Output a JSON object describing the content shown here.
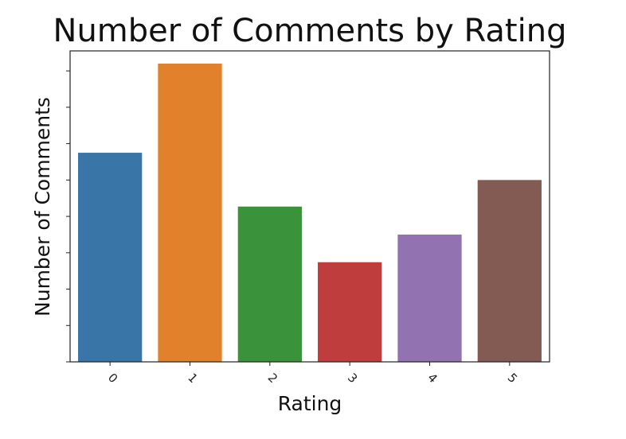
{
  "chart_data": {
    "type": "bar",
    "title": "Number of Comments by Rating",
    "xlabel": "Rating",
    "ylabel": "Number of Comments",
    "categories": [
      "0",
      "1",
      "2",
      "3",
      "4",
      "5"
    ],
    "values": [
      5.75,
      8.2,
      4.27,
      2.74,
      3.5,
      5.0
    ],
    "ylim": [
      0,
      8.55
    ],
    "y_ticks": [
      0,
      1,
      2,
      3,
      4,
      5,
      6,
      7,
      8
    ],
    "y_tick_labels_visible": false,
    "x_tick_rotation": 45,
    "grid": false,
    "legend": "none",
    "colors": [
      "#3a75a8",
      "#e1812c",
      "#3a923a",
      "#c03d3e",
      "#9372b2",
      "#845b53"
    ]
  }
}
